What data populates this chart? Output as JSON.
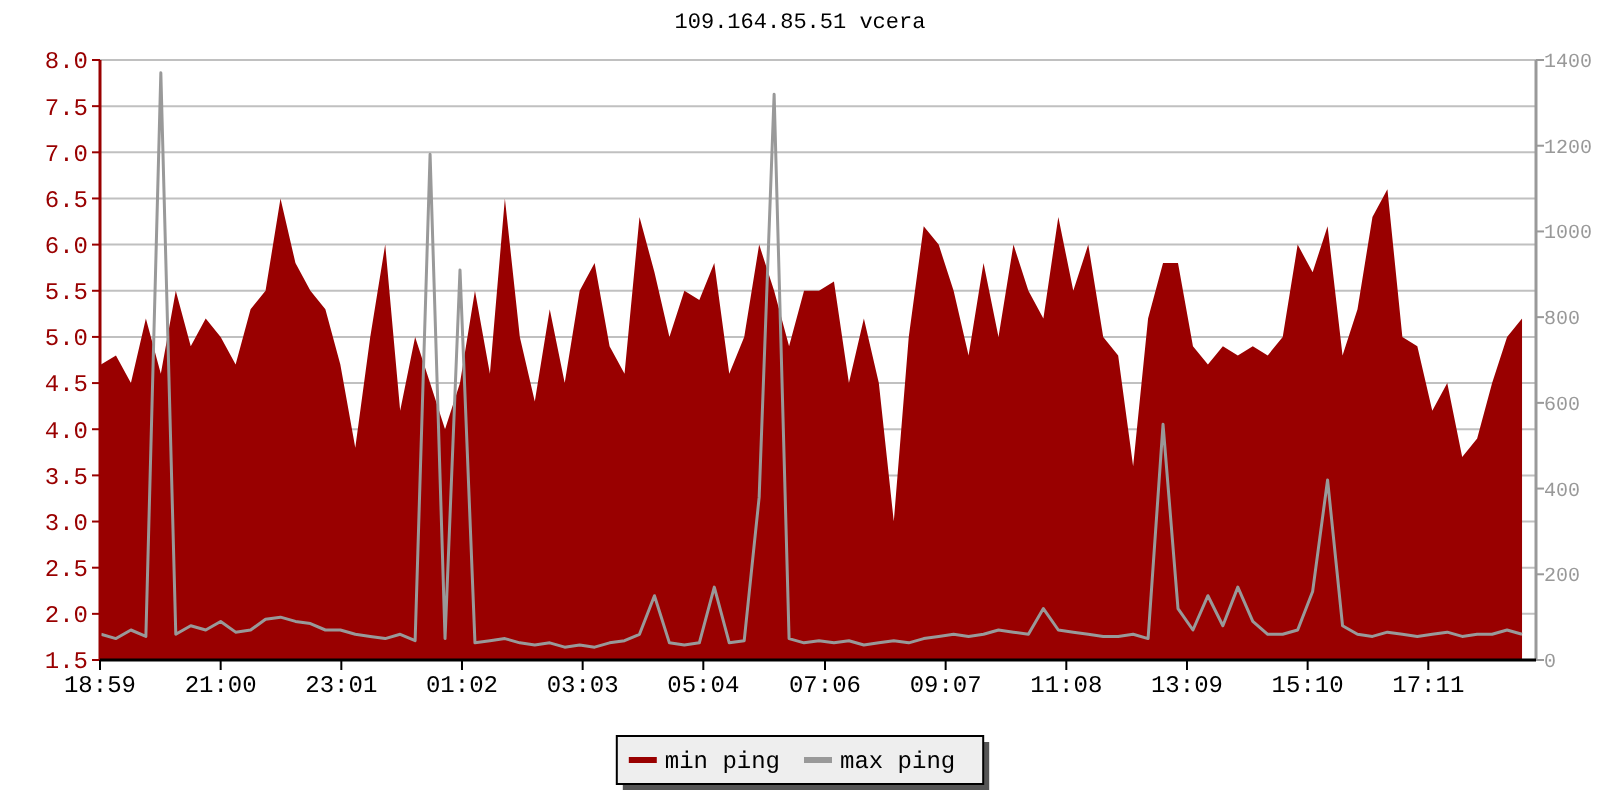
{
  "chart_data": {
    "type": "area",
    "title": "109.164.85.51 vcera",
    "x": [
      "2000-01-01T19:00",
      "2000-01-01T19:15",
      "2000-01-01T19:30",
      "2000-01-01T19:45",
      "2000-01-01T20:00",
      "2000-01-01T20:15",
      "2000-01-01T20:30",
      "2000-01-01T20:45",
      "2000-01-01T21:00",
      "2000-01-01T21:15",
      "2000-01-01T21:30",
      "2000-01-01T21:45",
      "2000-01-01T22:00",
      "2000-01-01T22:15",
      "2000-01-01T22:30",
      "2000-01-01T22:45",
      "2000-01-01T23:00",
      "2000-01-01T23:15",
      "2000-01-01T23:30",
      "2000-01-01T23:45",
      "2000-01-02T00:00",
      "2000-01-02T00:15",
      "2000-01-02T00:30",
      "2000-01-02T00:45",
      "2000-01-02T01:00",
      "2000-01-02T01:15",
      "2000-01-02T01:30",
      "2000-01-02T01:45",
      "2000-01-02T02:00",
      "2000-01-02T02:15",
      "2000-01-02T02:30",
      "2000-01-02T02:45",
      "2000-01-02T03:00",
      "2000-01-02T03:15",
      "2000-01-02T03:30",
      "2000-01-02T03:45",
      "2000-01-02T04:00",
      "2000-01-02T04:15",
      "2000-01-02T04:30",
      "2000-01-02T04:45",
      "2000-01-02T05:00",
      "2000-01-02T05:15",
      "2000-01-02T05:30",
      "2000-01-02T05:45",
      "2000-01-02T06:00",
      "2000-01-02T06:15",
      "2000-01-02T06:30",
      "2000-01-02T06:45",
      "2000-01-02T07:00",
      "2000-01-02T07:15",
      "2000-01-02T07:30",
      "2000-01-02T07:45",
      "2000-01-02T08:00",
      "2000-01-02T08:15",
      "2000-01-02T08:30",
      "2000-01-02T08:45",
      "2000-01-02T09:00",
      "2000-01-02T09:15",
      "2000-01-02T09:30",
      "2000-01-02T09:45",
      "2000-01-02T10:00",
      "2000-01-02T10:15",
      "2000-01-02T10:30",
      "2000-01-02T10:45",
      "2000-01-02T11:00",
      "2000-01-02T11:15",
      "2000-01-02T11:30",
      "2000-01-02T11:45",
      "2000-01-02T12:00",
      "2000-01-02T12:15",
      "2000-01-02T12:30",
      "2000-01-02T12:45",
      "2000-01-02T13:00",
      "2000-01-02T13:15",
      "2000-01-02T13:30",
      "2000-01-02T13:45",
      "2000-01-02T14:00",
      "2000-01-02T14:15",
      "2000-01-02T14:30",
      "2000-01-02T14:45",
      "2000-01-02T15:00",
      "2000-01-02T15:15",
      "2000-01-02T15:30",
      "2000-01-02T15:45",
      "2000-01-02T16:00",
      "2000-01-02T16:15",
      "2000-01-02T16:30",
      "2000-01-02T16:45",
      "2000-01-02T17:00",
      "2000-01-02T17:15",
      "2000-01-02T17:30",
      "2000-01-02T17:45",
      "2000-01-02T18:00",
      "2000-01-02T18:15",
      "2000-01-02T18:30",
      "2000-01-02T18:45"
    ],
    "series": [
      {
        "name": "min ping",
        "color": "#990000",
        "values": [
          4.7,
          4.8,
          4.5,
          5.2,
          4.6,
          5.5,
          4.9,
          5.2,
          5.0,
          4.7,
          5.3,
          5.5,
          6.5,
          5.8,
          5.5,
          5.3,
          4.7,
          3.8,
          5.0,
          6.0,
          4.2,
          5.0,
          4.5,
          4.0,
          4.5,
          5.5,
          4.6,
          6.5,
          5.0,
          4.3,
          5.3,
          4.5,
          5.5,
          5.8,
          4.9,
          4.6,
          6.3,
          5.7,
          5.0,
          5.5,
          5.4,
          5.8,
          4.6,
          5.0,
          6.0,
          5.5,
          4.9,
          5.5,
          5.5,
          5.6,
          4.5,
          5.2,
          4.5,
          3.0,
          5.0,
          6.2,
          6.0,
          5.5,
          4.8,
          5.8,
          5.0,
          6.0,
          5.5,
          5.2,
          6.3,
          5.5,
          6.0,
          5.0,
          4.8,
          3.6,
          5.2,
          5.8,
          5.8,
          4.9,
          4.7,
          4.9,
          4.8,
          4.9,
          4.8,
          5.0,
          6.0,
          5.7,
          6.2,
          4.8,
          5.3,
          6.3,
          6.6,
          5.0,
          4.9,
          4.2,
          4.5,
          3.7,
          3.9,
          4.5,
          5.0,
          5.2
        ]
      },
      {
        "name": "max ping",
        "type": "line",
        "axis": "y2",
        "color": "#999999",
        "values": [
          60,
          50,
          70,
          55,
          1370,
          60,
          80,
          70,
          90,
          65,
          70,
          95,
          100,
          90,
          85,
          70,
          70,
          60,
          55,
          50,
          60,
          45,
          1180,
          50,
          910,
          40,
          45,
          50,
          40,
          35,
          40,
          30,
          35,
          30,
          40,
          45,
          60,
          150,
          40,
          35,
          40,
          170,
          40,
          45,
          380,
          1320,
          50,
          40,
          45,
          40,
          45,
          35,
          40,
          45,
          40,
          50,
          55,
          60,
          55,
          60,
          70,
          65,
          60,
          120,
          70,
          65,
          60,
          55,
          55,
          60,
          50,
          550,
          120,
          70,
          150,
          80,
          170,
          90,
          60,
          60,
          70,
          160,
          420,
          80,
          60,
          55,
          65,
          60,
          55,
          60,
          65,
          55,
          60,
          60,
          70,
          60
        ]
      }
    ],
    "xlim": [
      "2000-01-01T18:59",
      "2000-01-02T18:59"
    ],
    "xticks": [
      {
        "value": "2000-01-01T18:59",
        "label": "18:59"
      },
      {
        "value": "2000-01-01T21:00",
        "label": "21:00"
      },
      {
        "value": "2000-01-01T23:01",
        "label": "23:01"
      },
      {
        "value": "2000-01-02T01:02",
        "label": "01:02"
      },
      {
        "value": "2000-01-02T03:03",
        "label": "03:03"
      },
      {
        "value": "2000-01-02T05:04",
        "label": "05:04"
      },
      {
        "value": "2000-01-02T07:06",
        "label": "07:06"
      },
      {
        "value": "2000-01-02T09:07",
        "label": "09:07"
      },
      {
        "value": "2000-01-02T11:08",
        "label": "11:08"
      },
      {
        "value": "2000-01-02T13:09",
        "label": "13:09"
      },
      {
        "value": "2000-01-02T15:10",
        "label": "15:10"
      },
      {
        "value": "2000-01-02T17:11",
        "label": "17:11"
      }
    ],
    "ylim": [
      1.5,
      8.0
    ],
    "yticks": [
      {
        "value": 1.5,
        "label": "1.5"
      },
      {
        "value": 2.0,
        "label": "2.0"
      },
      {
        "value": 2.5,
        "label": "2.5"
      },
      {
        "value": 3.0,
        "label": "3.0"
      },
      {
        "value": 3.5,
        "label": "3.5"
      },
      {
        "value": 4.0,
        "label": "4.0"
      },
      {
        "value": 4.5,
        "label": "4.5"
      },
      {
        "value": 5.0,
        "label": "5.0"
      },
      {
        "value": 5.5,
        "label": "5.5"
      },
      {
        "value": 6.0,
        "label": "6.0"
      },
      {
        "value": 6.5,
        "label": "6.5"
      },
      {
        "value": 7.0,
        "label": "7.0"
      },
      {
        "value": 7.5,
        "label": "7.5"
      },
      {
        "value": 8.0,
        "label": "8.0"
      }
    ],
    "y2lim": [
      0,
      1400
    ],
    "y2ticks": [
      0,
      200,
      400,
      600,
      800,
      1000,
      1200,
      1400
    ],
    "grid": "y",
    "legend": "bottom"
  }
}
